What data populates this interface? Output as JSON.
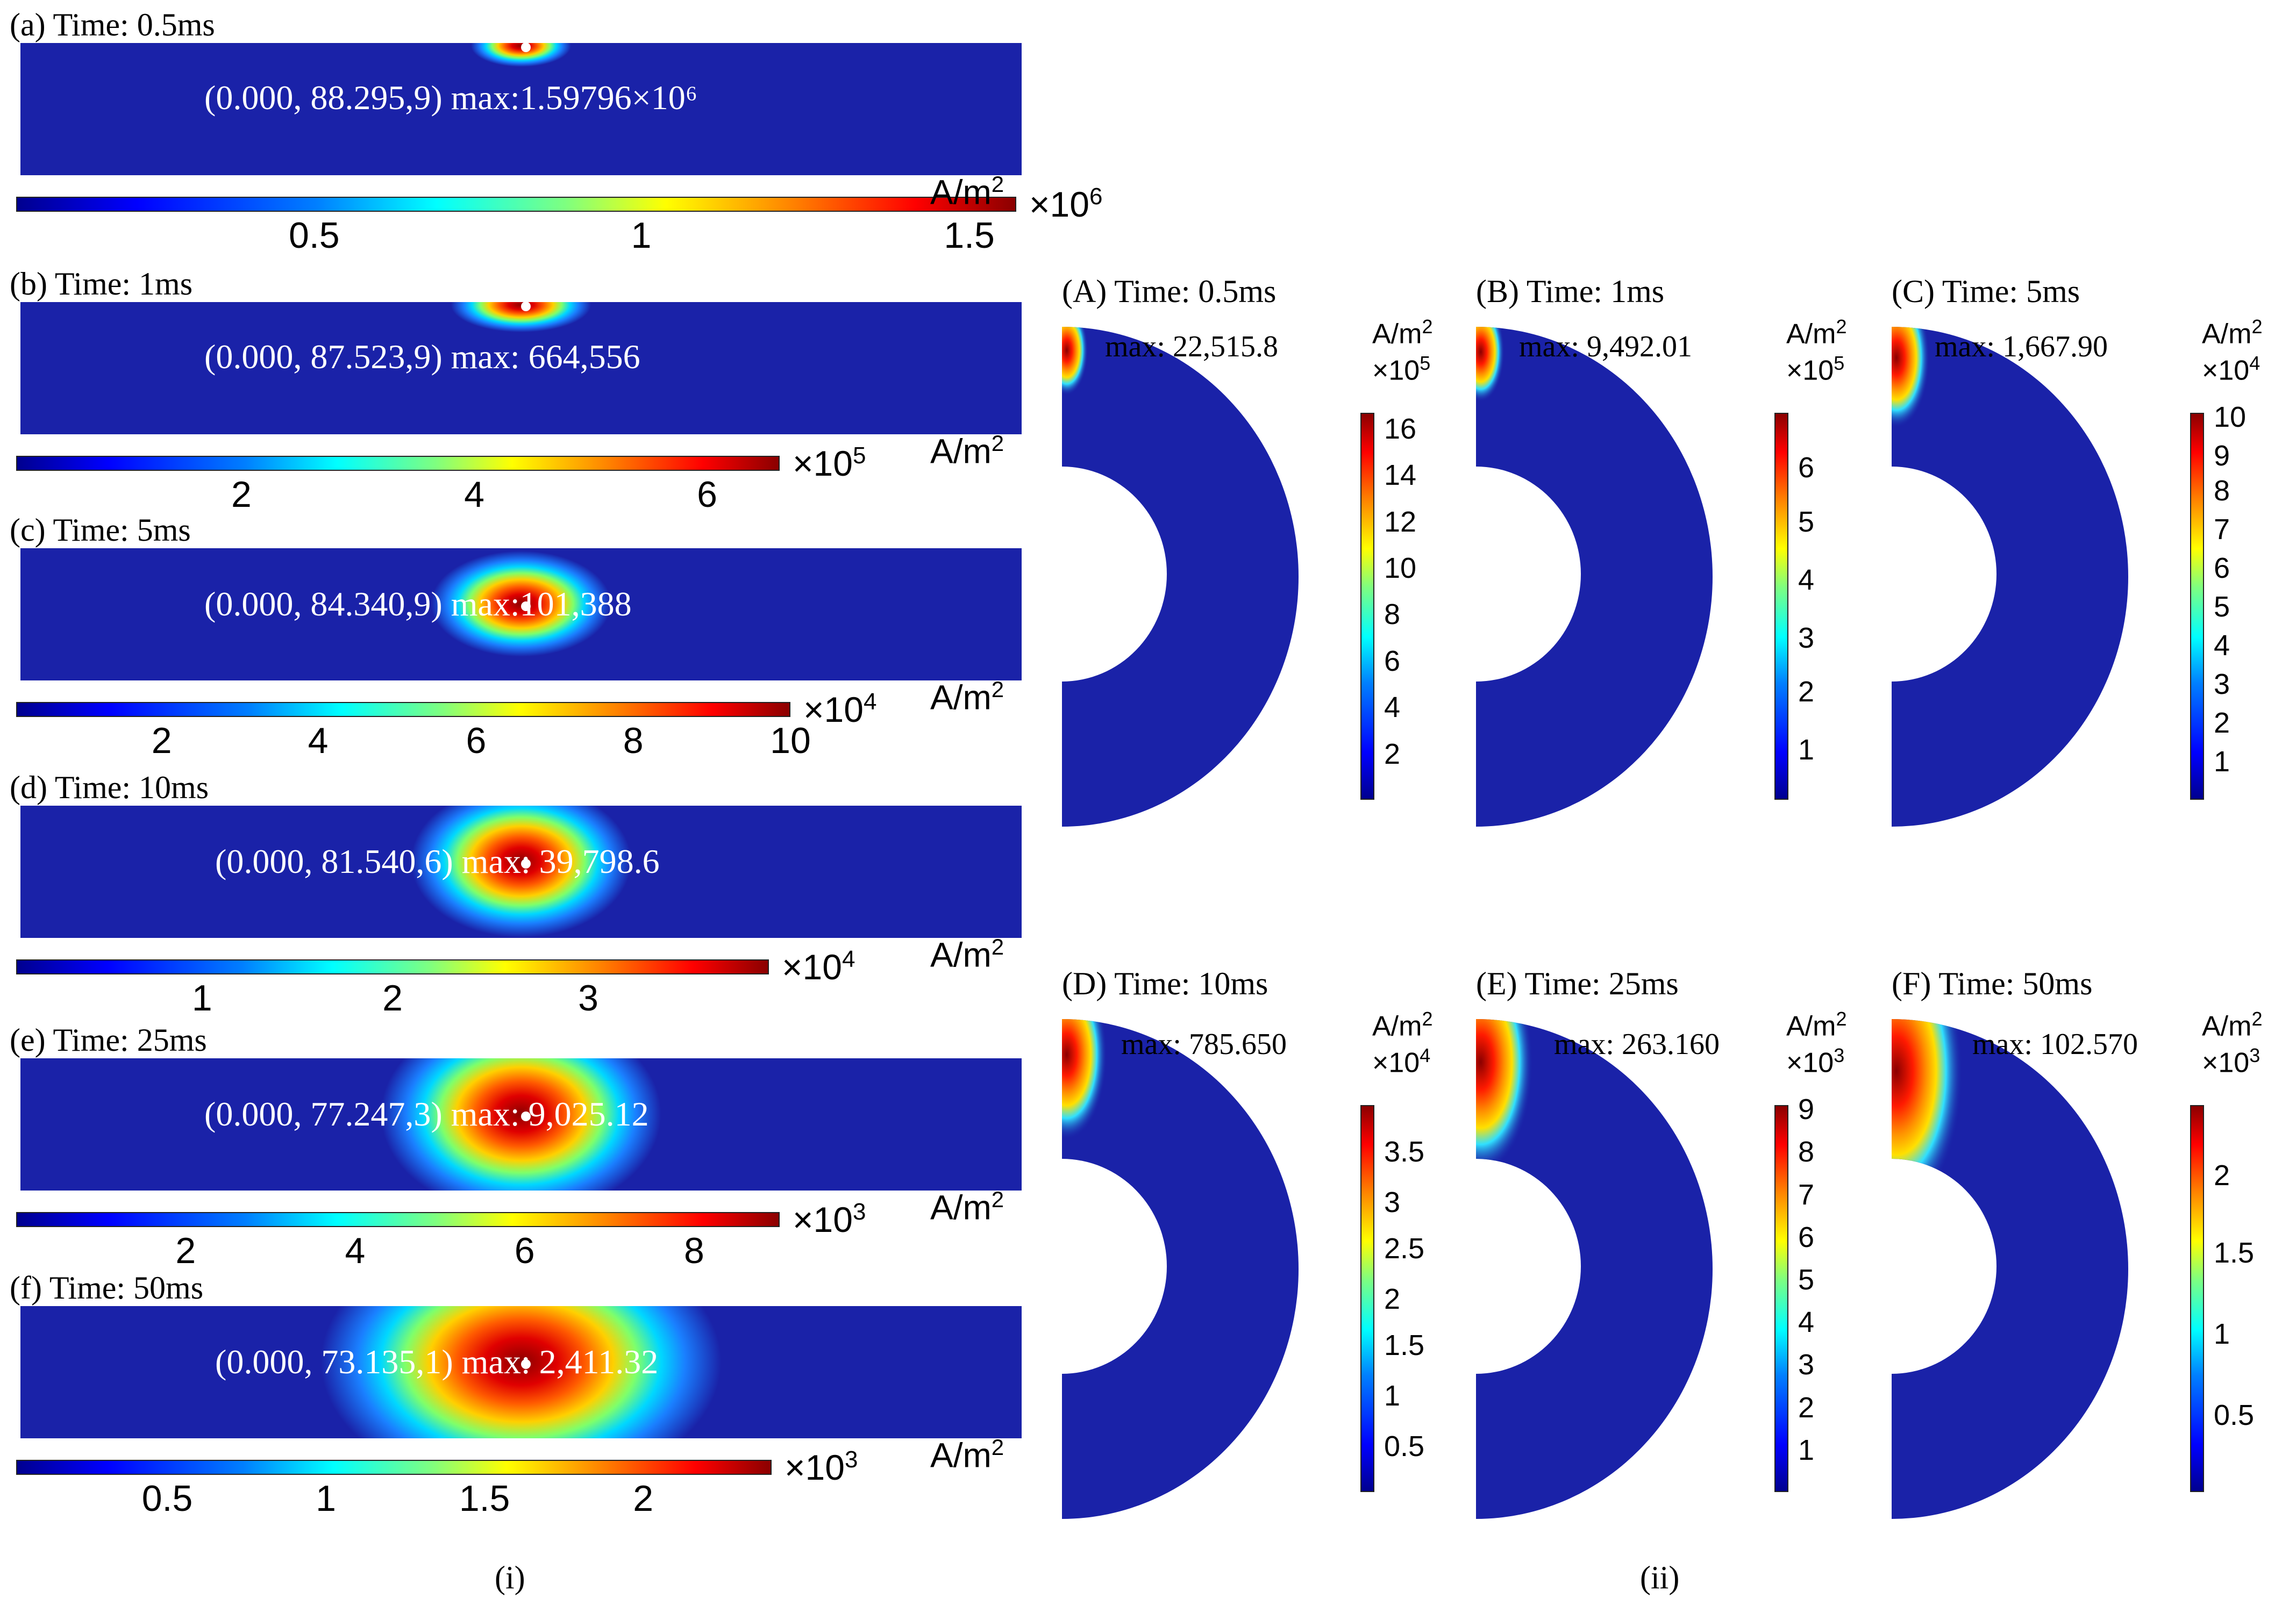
{
  "left_panels": [
    {
      "title": "(a)  Time: 0.5ms",
      "label": "(0.000, 88.295,9) max:1.59796×10⁶",
      "multiplier": "×10",
      "exp": "6",
      "unit": "A/m",
      "unit_exp": "2",
      "ticks": [
        "0.5",
        "1",
        "1.5"
      ],
      "tick_fracs": [
        0.298,
        0.625,
        0.953
      ],
      "hotspot": {
        "rx": 0.05,
        "ry": 0.1,
        "peak": 1.0
      }
    },
    {
      "title": "(b)  Time: 1ms",
      "label": "(0.000, 87.523,9) max: 664,556",
      "multiplier": "×10",
      "exp": "5",
      "unit": "A/m",
      "unit_exp": "2",
      "ticks": [
        "2",
        "4",
        "6"
      ],
      "tick_fracs": [
        0.295,
        0.6,
        0.905
      ],
      "hotspot": {
        "rx": 0.07,
        "ry": 0.13,
        "peak": 1.0
      }
    },
    {
      "title": "(c)  Time: 5ms",
      "label": "(0.000, 84.340,9) max:101,388",
      "multiplier": "×10",
      "exp": "4",
      "unit": "A/m",
      "unit_exp": "2",
      "ticks": [
        "2",
        "4",
        "6",
        "8",
        "10"
      ],
      "tick_fracs": [
        0.188,
        0.39,
        0.594,
        0.797,
        1.0
      ],
      "hotspot": {
        "rx": 0.09,
        "ry": 0.25,
        "peak": 1.0
      }
    },
    {
      "title": "(d)  Time: 10ms",
      "label": "(0.000, 81.540,6) max: 39,798.6",
      "multiplier": "×10",
      "exp": "4",
      "unit": "A/m",
      "unit_exp": "2",
      "ticks": [
        "1",
        "2",
        "3"
      ],
      "tick_fracs": [
        0.247,
        0.5,
        0.76
      ],
      "hotspot": {
        "rx": 0.11,
        "ry": 0.36,
        "peak": 1.0
      }
    },
    {
      "title": "(e)  Time: 25ms",
      "label": "(0.000, 77.247,3) max: 9,025.12",
      "multiplier": "×10",
      "exp": "3",
      "unit": "A/m",
      "unit_exp": "2",
      "ticks": [
        "2",
        "4",
        "6",
        "8"
      ],
      "tick_fracs": [
        0.222,
        0.444,
        0.666,
        0.888
      ],
      "hotspot": {
        "rx": 0.14,
        "ry": 0.48,
        "peak": 1.0
      }
    },
    {
      "title": "(f)  Time: 50ms",
      "label": "(0.000, 73.135,1) max: 2,411.32",
      "multiplier": "×10",
      "exp": "3",
      "unit": "A/m",
      "unit_exp": "2",
      "ticks": [
        "0.5",
        "1",
        "1.5",
        "2"
      ],
      "tick_fracs": [
        0.2,
        0.41,
        0.62,
        0.83
      ],
      "hotspot": {
        "rx": 0.2,
        "ry": 0.62,
        "peak": 1.0
      }
    }
  ],
  "right_panels": [
    {
      "title": "(A)  Time: 0.5ms",
      "max": "max: 22,515.8",
      "unit": "A/m",
      "unit_exp": "2",
      "multiplier": "×10",
      "exp": "5",
      "ticks": [
        "16",
        "14",
        "12",
        "10",
        "8",
        "6",
        "4",
        "2"
      ],
      "tick_fracs": [
        0.96,
        0.84,
        0.72,
        0.6,
        0.48,
        0.36,
        0.24,
        0.12
      ]
    },
    {
      "title": "(B)  Time: 1ms",
      "max": "max: 9,492.01",
      "unit": "A/m",
      "unit_exp": "2",
      "multiplier": "×10",
      "exp": "5",
      "ticks": [
        "6",
        "5",
        "4",
        "3",
        "2",
        "1"
      ],
      "tick_fracs": [
        0.86,
        0.72,
        0.57,
        0.42,
        0.28,
        0.13
      ]
    },
    {
      "title": "(C)  Time: 5ms",
      "max": "max: 1,667.90",
      "unit": "A/m",
      "unit_exp": "2",
      "multiplier": "×10",
      "exp": "4",
      "ticks": [
        "10",
        "9",
        "8",
        "7",
        "6",
        "5",
        "4",
        "3",
        "2",
        "1"
      ],
      "tick_fracs": [
        0.99,
        0.89,
        0.8,
        0.7,
        0.6,
        0.5,
        0.4,
        0.3,
        0.2,
        0.1
      ]
    },
    {
      "title": "(D)  Time: 10ms",
      "max": "max: 785.650",
      "unit": "A/m",
      "unit_exp": "2",
      "multiplier": "×10",
      "exp": "4",
      "ticks": [
        "3.5",
        "3",
        "2.5",
        "2",
        "1.5",
        "1",
        "0.5"
      ],
      "tick_fracs": [
        0.88,
        0.75,
        0.63,
        0.5,
        0.38,
        0.25,
        0.12
      ]
    },
    {
      "title": "(E)  Time: 25ms",
      "max": "max: 263.160",
      "unit": "A/m",
      "unit_exp": "2",
      "multiplier": "×10",
      "exp": "3",
      "ticks": [
        "9",
        "8",
        "7",
        "6",
        "5",
        "4",
        "3",
        "2",
        "1"
      ],
      "tick_fracs": [
        0.99,
        0.88,
        0.77,
        0.66,
        0.55,
        0.44,
        0.33,
        0.22,
        0.11
      ]
    },
    {
      "title": "(F)  Time: 50ms",
      "max": "max: 102.570",
      "unit": "A/m",
      "unit_exp": "2",
      "multiplier": "×10",
      "exp": "3",
      "ticks": [
        "2",
        "1.5",
        "1",
        "0.5"
      ],
      "tick_fracs": [
        0.82,
        0.62,
        0.41,
        0.2
      ]
    }
  ],
  "captions": {
    "left": "(i)",
    "right": "(ii)"
  },
  "colors": {
    "field_blue": "#1a22a8",
    "deep": "#00008f",
    "hot": "#b00000",
    "white": "#ffffff"
  }
}
